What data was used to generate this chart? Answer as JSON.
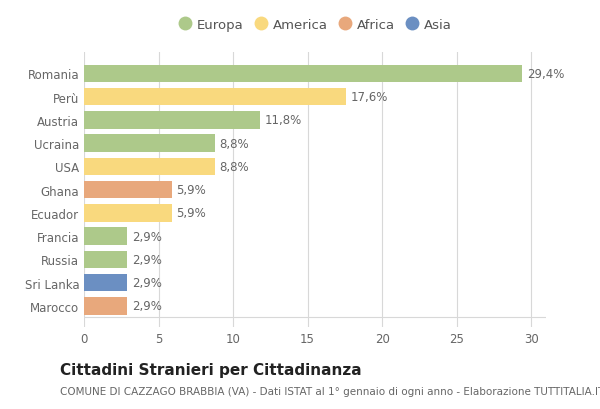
{
  "countries": [
    "Romania",
    "Perù",
    "Austria",
    "Ucraina",
    "USA",
    "Ghana",
    "Ecuador",
    "Francia",
    "Russia",
    "Sri Lanka",
    "Marocco"
  ],
  "values": [
    29.4,
    17.6,
    11.8,
    8.8,
    8.8,
    5.9,
    5.9,
    2.9,
    2.9,
    2.9,
    2.9
  ],
  "labels": [
    "29,4%",
    "17,6%",
    "11,8%",
    "8,8%",
    "8,8%",
    "5,9%",
    "5,9%",
    "2,9%",
    "2,9%",
    "2,9%",
    "2,9%"
  ],
  "continents": [
    "Europa",
    "America",
    "Europa",
    "Europa",
    "America",
    "Africa",
    "America",
    "Europa",
    "Europa",
    "Asia",
    "Africa"
  ],
  "colors": {
    "Europa": "#adc98a",
    "America": "#f9d97e",
    "Africa": "#e8a87c",
    "Asia": "#6b8fc2"
  },
  "legend_order": [
    "Europa",
    "America",
    "Africa",
    "Asia"
  ],
  "title": "Cittadini Stranieri per Cittadinanza",
  "subtitle": "COMUNE DI CAZZAGO BRABBIA (VA) - Dati ISTAT al 1° gennaio di ogni anno - Elaborazione TUTTITALIA.IT",
  "xlim": [
    0,
    31
  ],
  "xticks": [
    0,
    5,
    10,
    15,
    20,
    25,
    30
  ],
  "background_color": "#ffffff",
  "grid_color": "#d8d8d8",
  "bar_height": 0.75,
  "title_fontsize": 11,
  "subtitle_fontsize": 7.5,
  "label_fontsize": 8.5,
  "tick_fontsize": 8.5,
  "legend_fontsize": 9.5
}
